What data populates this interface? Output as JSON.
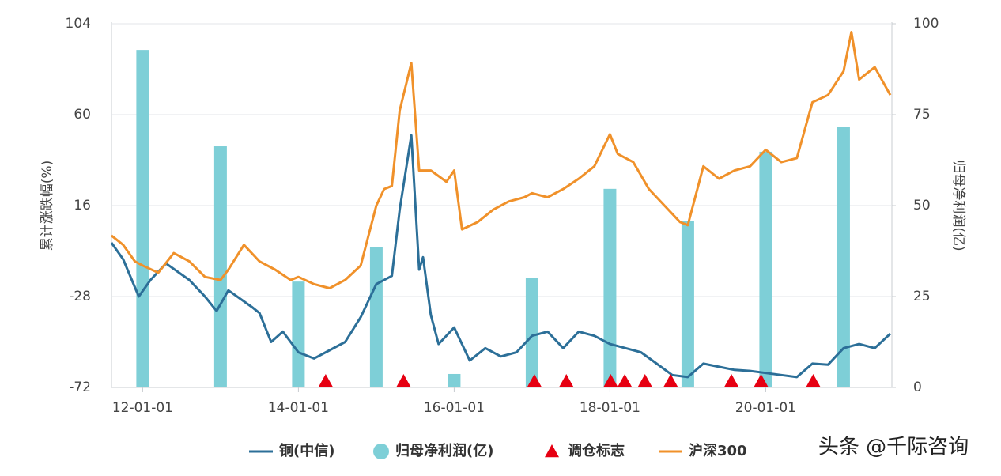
{
  "chart_data": {
    "type": "combo",
    "ylabel": "累计涨跌幅(%)",
    "y2label": "归母净利润(亿)",
    "xlim": [
      2011.6,
      2021.62
    ],
    "xticks": [
      {
        "value": 2012,
        "label": "12-01-01"
      },
      {
        "value": 2014,
        "label": "14-01-01"
      },
      {
        "value": 2016,
        "label": "16-01-01"
      },
      {
        "value": 2018,
        "label": "18-01-01"
      },
      {
        "value": 2020,
        "label": "20-01-01"
      }
    ],
    "ylim": [
      -72,
      104
    ],
    "yticks": [
      -72,
      -28,
      16,
      60,
      104
    ],
    "y2lim": [
      0,
      100
    ],
    "y2ticks": [
      0,
      25,
      50,
      75,
      100
    ],
    "grid": true,
    "series": [
      {
        "name": "铜(中信)",
        "type": "line",
        "color": "#2c6f98",
        "x": [
          2011.6,
          2011.75,
          2011.95,
          2012.1,
          2012.3,
          2012.6,
          2012.8,
          2012.95,
          2013.1,
          2013.4,
          2013.5,
          2013.65,
          2013.8,
          2014.0,
          2014.2,
          2014.4,
          2014.6,
          2014.8,
          2015.0,
          2015.2,
          2015.3,
          2015.45,
          2015.55,
          2015.6,
          2015.7,
          2015.8,
          2016.0,
          2016.2,
          2016.4,
          2016.6,
          2016.8,
          2017.0,
          2017.2,
          2017.4,
          2017.6,
          2017.8,
          2018.0,
          2018.2,
          2018.4,
          2018.6,
          2018.8,
          2019.0,
          2019.2,
          2019.4,
          2019.6,
          2019.8,
          2020.0,
          2020.2,
          2020.4,
          2020.6,
          2020.8,
          2021.0,
          2021.2,
          2021.4,
          2021.6
        ],
        "values": [
          -2,
          -10,
          -28,
          -20,
          -12,
          -20,
          -28,
          -35,
          -25,
          -33,
          -36,
          -50,
          -45,
          -55,
          -58,
          -54,
          -50,
          -38,
          -22,
          -18,
          14,
          50,
          -15,
          -9,
          -37,
          -51,
          -43,
          -59,
          -53,
          -57,
          -55,
          -47,
          -45,
          -53,
          -45,
          -47,
          -51,
          -53,
          -55,
          -60.5,
          -66,
          -67,
          -60.5,
          -62,
          -63.5,
          -64,
          -65,
          -66,
          -67,
          -60.5,
          -61,
          -53,
          -51,
          -53,
          -46
        ]
      },
      {
        "name": "归母净利润(亿)",
        "type": "bar",
        "axis": "y2",
        "color": "#7ecfd7",
        "x": [
          2012,
          2013,
          2014,
          2015,
          2016,
          2017,
          2018,
          2019,
          2020,
          2021
        ],
        "values": [
          92.8,
          66.3,
          29.1,
          38.5,
          3.7,
          30,
          54.6,
          45.7,
          64.8,
          71.7
        ]
      },
      {
        "name": "调仓标志",
        "type": "marker",
        "color": "#e60012",
        "x": [
          2014.35,
          2015.35,
          2017.03,
          2017.44,
          2018.01,
          2018.19,
          2018.45,
          2018.78,
          2019.56,
          2019.94,
          2020.61
        ]
      },
      {
        "name": "沪深300",
        "type": "line",
        "color": "#f0912a",
        "x": [
          2011.6,
          2011.75,
          2011.9,
          2012.0,
          2012.2,
          2012.4,
          2012.6,
          2012.8,
          2013.0,
          2013.1,
          2013.3,
          2013.5,
          2013.7,
          2013.9,
          2014.0,
          2014.2,
          2014.4,
          2014.6,
          2014.8,
          2015.0,
          2015.1,
          2015.2,
          2015.3,
          2015.45,
          2015.55,
          2015.7,
          2015.9,
          2016.0,
          2016.1,
          2016.3,
          2016.5,
          2016.7,
          2016.9,
          2017.0,
          2017.2,
          2017.4,
          2017.6,
          2017.8,
          2018.0,
          2018.1,
          2018.3,
          2018.5,
          2018.7,
          2018.9,
          2019.0,
          2019.2,
          2019.4,
          2019.6,
          2019.8,
          2020.0,
          2020.2,
          2020.4,
          2020.6,
          2020.8,
          2021.0,
          2021.1,
          2021.2,
          2021.4,
          2021.6
        ],
        "values": [
          1.5,
          -3,
          -11,
          -13,
          -16.5,
          -7,
          -11,
          -18.5,
          -20,
          -15,
          -3,
          -11,
          -15,
          -20,
          -18.5,
          -22,
          -24,
          -20,
          -13,
          16,
          24,
          25.5,
          62,
          85,
          33,
          33,
          27.5,
          33,
          4.5,
          8,
          14,
          18,
          20,
          22,
          20,
          24,
          29,
          35,
          50.5,
          41,
          37,
          24,
          16,
          8,
          6.5,
          35,
          29,
          33,
          35,
          43,
          37,
          39,
          66,
          69.5,
          81,
          100,
          77,
          83,
          69.5
        ]
      }
    ],
    "watermark": "头条 @千际咨询"
  }
}
